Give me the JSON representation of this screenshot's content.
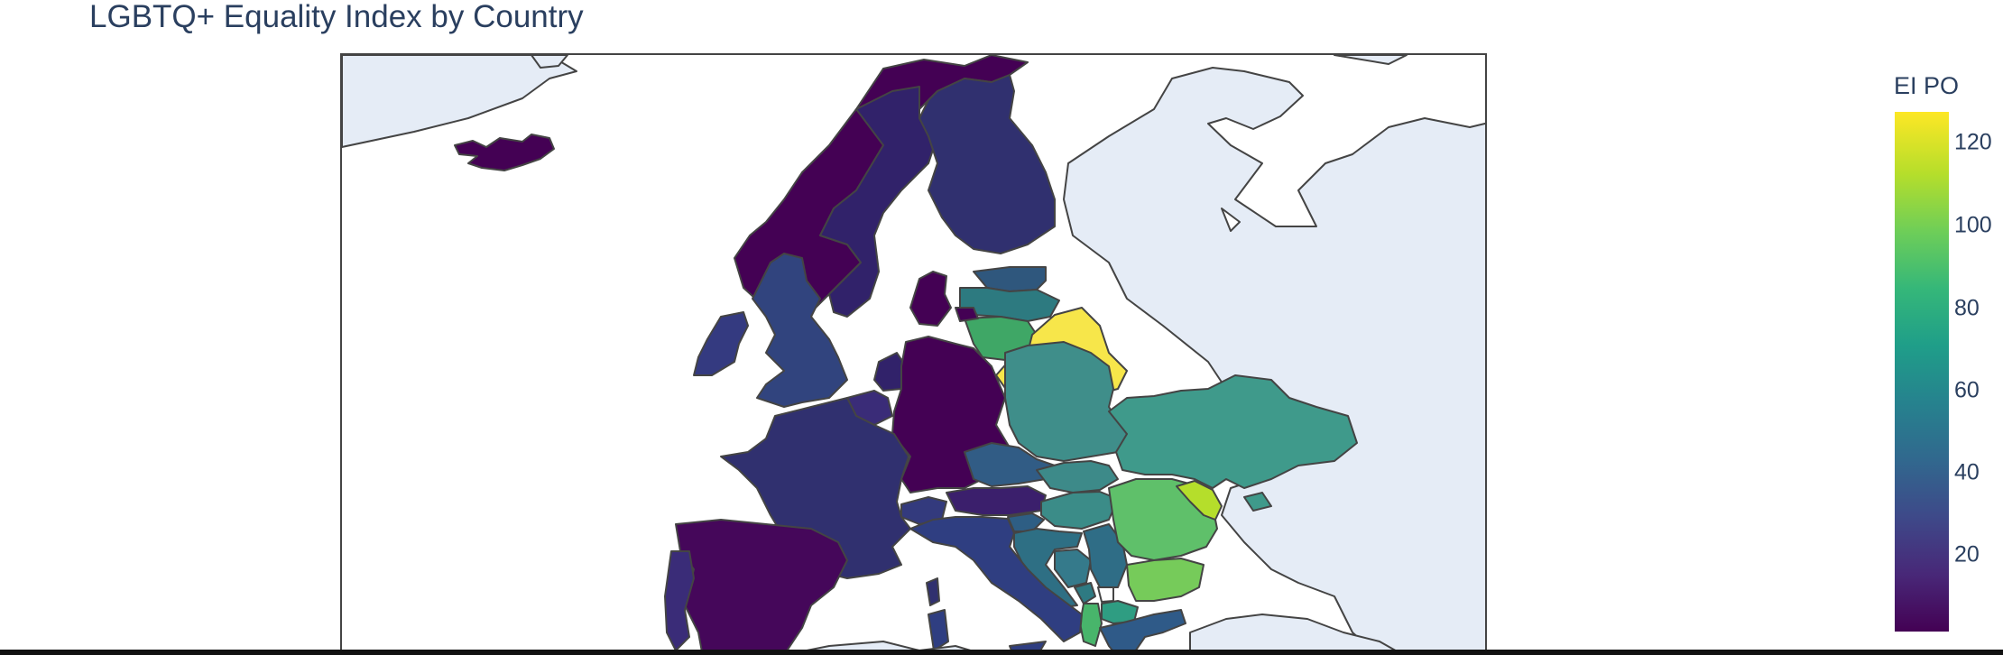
{
  "title": "LGBTQ+ Equality Index by Country",
  "colorbar": {
    "title": "EI PO",
    "ticks": [
      "120",
      "100",
      "80",
      "60",
      "40",
      "20"
    ],
    "range": [
      2,
      127
    ],
    "colorscale": "Viridis"
  },
  "colors": {
    "land": "#e5ecf6",
    "ocean": "#ffffff",
    "border": "#444444"
  }
}
